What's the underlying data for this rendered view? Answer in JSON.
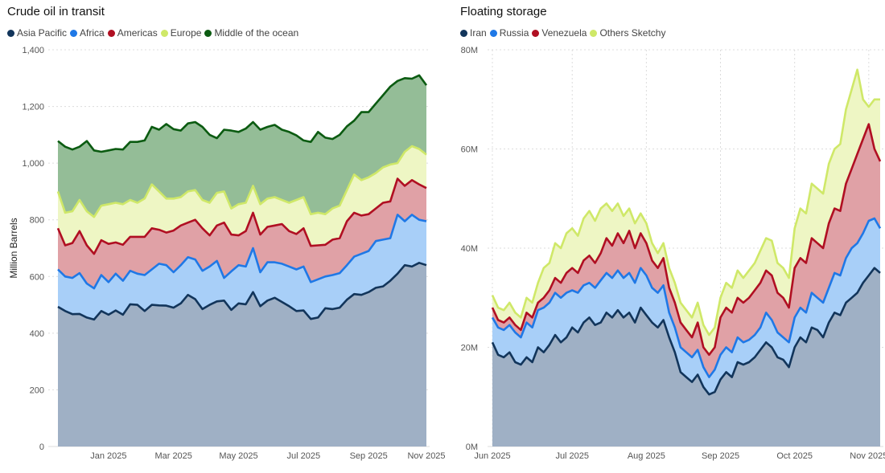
{
  "chart_data": [
    {
      "type": "area",
      "stacked": true,
      "title": "Crude oil in transit",
      "ylabel": "Million Barrels",
      "ylim": [
        0,
        1400
      ],
      "yticks": [
        0,
        200,
        400,
        600,
        800,
        1000,
        1200,
        1400
      ],
      "ytick_labels": [
        "0",
        "200",
        "400",
        "600",
        "800",
        "1,000",
        "1,200",
        "1,400"
      ],
      "xtick_labels": [
        "Jan 2025",
        "Mar 2025",
        "May 2025",
        "Jul 2025",
        "Sep 2025",
        "Nov 2025"
      ],
      "xtick_index": [
        7,
        16,
        25,
        34,
        43,
        51
      ],
      "series": [
        {
          "name": "Asia Pacific",
          "color": "#12355b",
          "fill": "#9fb0c5",
          "values": [
            493,
            478,
            467,
            468,
            455,
            448,
            478,
            465,
            480,
            465,
            502,
            500,
            478,
            500,
            498,
            497,
            490,
            505,
            535,
            520,
            485,
            500,
            512,
            515,
            482,
            505,
            502,
            545,
            495,
            515,
            525,
            510,
            495,
            478,
            480,
            450,
            455,
            488,
            485,
            490,
            518,
            538,
            535,
            545,
            560,
            565,
            585,
            610,
            640,
            635,
            648,
            640
          ]
        },
        {
          "name": "Africa",
          "color": "#1f78e6",
          "fill": "#a8cff8",
          "values": [
            625,
            600,
            595,
            612,
            575,
            558,
            605,
            580,
            610,
            585,
            620,
            610,
            605,
            625,
            645,
            640,
            615,
            640,
            668,
            660,
            620,
            635,
            655,
            595,
            618,
            640,
            635,
            700,
            615,
            650,
            650,
            645,
            635,
            625,
            635,
            580,
            590,
            600,
            605,
            612,
            640,
            670,
            680,
            690,
            725,
            730,
            735,
            818,
            795,
            818,
            800,
            795
          ]
        },
        {
          "name": "Americas",
          "color": "#b00f22",
          "fill": "#e0a1a6",
          "values": [
            770,
            710,
            718,
            760,
            710,
            680,
            728,
            715,
            720,
            712,
            740,
            740,
            740,
            770,
            765,
            755,
            762,
            780,
            790,
            800,
            770,
            745,
            780,
            790,
            748,
            745,
            760,
            825,
            748,
            775,
            780,
            785,
            760,
            750,
            770,
            708,
            710,
            712,
            730,
            735,
            795,
            825,
            815,
            820,
            840,
            860,
            865,
            945,
            920,
            940,
            925,
            912
          ]
        },
        {
          "name": "Europe",
          "color": "#cfe868",
          "fill": "#eef6c4",
          "values": [
            900,
            825,
            830,
            870,
            830,
            810,
            850,
            855,
            860,
            855,
            870,
            860,
            875,
            925,
            900,
            875,
            875,
            880,
            900,
            905,
            870,
            860,
            895,
            900,
            840,
            855,
            860,
            920,
            855,
            875,
            880,
            870,
            860,
            870,
            880,
            820,
            825,
            820,
            840,
            850,
            905,
            960,
            940,
            950,
            965,
            985,
            995,
            1000,
            1040,
            1060,
            1050,
            1030
          ]
        },
        {
          "name": "Middle of the ocean",
          "color": "#0b5b11",
          "fill": "#94bd97",
          "values": [
            1078,
            1058,
            1048,
            1058,
            1078,
            1045,
            1040,
            1045,
            1050,
            1048,
            1075,
            1075,
            1080,
            1128,
            1118,
            1138,
            1120,
            1115,
            1140,
            1145,
            1128,
            1100,
            1088,
            1118,
            1115,
            1110,
            1122,
            1145,
            1118,
            1128,
            1135,
            1118,
            1110,
            1098,
            1080,
            1075,
            1110,
            1090,
            1085,
            1100,
            1130,
            1150,
            1180,
            1180,
            1210,
            1240,
            1270,
            1290,
            1300,
            1298,
            1310,
            1275
          ]
        }
      ]
    },
    {
      "type": "area",
      "stacked": true,
      "title": "Floating storage",
      "ylabel": "",
      "ylim": [
        0,
        80
      ],
      "yticks": [
        0,
        20,
        40,
        60,
        80
      ],
      "ytick_labels": [
        "0M",
        "20M",
        "40M",
        "60M",
        "80M"
      ],
      "xtick_labels": [
        "Jun 2025",
        "Jul 2025",
        "Aug 2025",
        "Sep 2025",
        "Oct 2025",
        "Nov 2025"
      ],
      "xtick_index": [
        0,
        14,
        27,
        40,
        53,
        66
      ],
      "series": [
        {
          "name": "Iran",
          "color": "#12355b",
          "fill": "#9fb0c5",
          "values": [
            21,
            18.5,
            18,
            19,
            17,
            16.5,
            18,
            17,
            20,
            19,
            20.5,
            22.5,
            21,
            22,
            24,
            23,
            25,
            26,
            24.5,
            25,
            27,
            26,
            27.5,
            26,
            27,
            25,
            28,
            26.5,
            25,
            24,
            25.5,
            22,
            19,
            15,
            14,
            13,
            14.5,
            12,
            10.5,
            11,
            13.5,
            15,
            14,
            17,
            16.5,
            17,
            18,
            19.5,
            21,
            20,
            18,
            17.5,
            16,
            20,
            22,
            21,
            24,
            23.5,
            22,
            25,
            27,
            26.5,
            29,
            30,
            31,
            33,
            34.5,
            36,
            35
          ]
        },
        {
          "name": "Russia",
          "color": "#1f78e6",
          "fill": "#a8cff8",
          "values": [
            26,
            24,
            23.5,
            24.5,
            23,
            22,
            25,
            24,
            27.5,
            28,
            29,
            31,
            30,
            31,
            31.5,
            31,
            32.5,
            33,
            32,
            33.5,
            35,
            34,
            35.5,
            34,
            35,
            33,
            36,
            34.5,
            32,
            31,
            32.5,
            27,
            24,
            20,
            19,
            18,
            19.5,
            16,
            14,
            15.5,
            18.5,
            20,
            19,
            22,
            21,
            21.5,
            22.5,
            24,
            27,
            25.5,
            23,
            22,
            21,
            26,
            28,
            27,
            31,
            30,
            29,
            32,
            35,
            34.5,
            38,
            40,
            41,
            43,
            45.5,
            46,
            44
          ]
        },
        {
          "name": "Venezuela",
          "color": "#b00f22",
          "fill": "#e0a1a6",
          "values": [
            28,
            25.5,
            25,
            26,
            24.5,
            23.5,
            27,
            26,
            29,
            30,
            31.5,
            34,
            33,
            35,
            36,
            35,
            37.5,
            38.5,
            37,
            39,
            42,
            40.5,
            43,
            41,
            43.5,
            40,
            43,
            41,
            37.5,
            36,
            38,
            32,
            29,
            25,
            23.5,
            22,
            25,
            20,
            18.5,
            20,
            26,
            28,
            27,
            30,
            29,
            30,
            31.5,
            33,
            35.5,
            34.5,
            31,
            30,
            28,
            36,
            38,
            37,
            42,
            41,
            40,
            45,
            48,
            47.5,
            53,
            56,
            59,
            62,
            65,
            60,
            57.5
          ]
        },
        {
          "name": "Others Sketchy",
          "color": "#cfe868",
          "fill": "#eef6c4",
          "values": [
            30.5,
            28,
            27.5,
            29,
            27,
            26,
            30,
            29,
            33,
            36,
            37,
            41,
            40,
            43,
            44,
            42.5,
            46,
            47.5,
            45.5,
            48,
            49,
            47.5,
            49,
            46.5,
            48,
            45,
            47,
            45,
            41,
            39,
            41,
            36,
            33,
            29,
            27.5,
            26,
            29,
            24.5,
            22.5,
            24,
            30,
            33,
            32,
            35.5,
            34,
            35.5,
            37,
            39.5,
            42,
            41.5,
            37,
            36,
            34,
            44,
            48,
            47,
            53,
            52,
            51,
            57,
            60,
            61,
            68,
            72,
            76,
            70,
            68.5,
            70,
            70
          ]
        }
      ]
    }
  ]
}
